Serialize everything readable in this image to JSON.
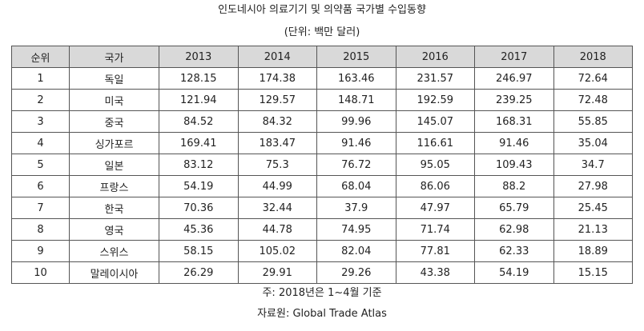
{
  "title": "인도네시아 의료기기 및 의약품 국가별 수입동향",
  "unit": "(단위: 백만 달러)",
  "columns": [
    "순위",
    "국가",
    "2013",
    "2014",
    "2015",
    "2016",
    "2017",
    "2018"
  ],
  "rows": [
    [
      "1",
      "독일",
      "128.15",
      "174.38",
      "163.46",
      "231.57",
      "246.97",
      "72.64"
    ],
    [
      "2",
      "미국",
      "121.94",
      "129.57",
      "148.71",
      "192.59",
      "239.25",
      "72.48"
    ],
    [
      "3",
      "중국",
      "84.52",
      "84.32",
      "99.96",
      "145.07",
      "168.31",
      "55.85"
    ],
    [
      "4",
      "싱가포르",
      "169.41",
      "183.47",
      "91.46",
      "116.61",
      "91.46",
      "35.04"
    ],
    [
      "5",
      "일본",
      "83.12",
      "75.3",
      "76.72",
      "95.05",
      "109.43",
      "34.7"
    ],
    [
      "6",
      "프랑스",
      "54.19",
      "44.99",
      "68.04",
      "86.06",
      "88.2",
      "27.98"
    ],
    [
      "7",
      "한국",
      "70.36",
      "32.44",
      "37.9",
      "47.97",
      "65.79",
      "25.45"
    ],
    [
      "8",
      "영국",
      "45.36",
      "44.78",
      "74.95",
      "71.74",
      "62.98",
      "21.13"
    ],
    [
      "9",
      "스위스",
      "58.15",
      "105.02",
      "82.04",
      "77.81",
      "62.33",
      "18.89"
    ],
    [
      "10",
      "말레이시아",
      "26.29",
      "29.91",
      "29.26",
      "43.38",
      "54.19",
      "15.15"
    ]
  ],
  "note": "주: 2018년은 1~4월 기준",
  "source": "자료원: Global Trade Atlas",
  "colors": {
    "header_bg": "#d9d9d9",
    "border": "#555555",
    "text": "#222222"
  }
}
